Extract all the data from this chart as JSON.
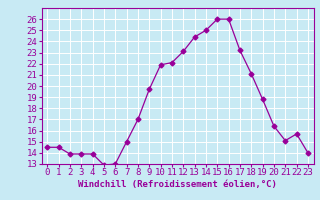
{
  "x": [
    0,
    1,
    2,
    3,
    4,
    5,
    6,
    7,
    8,
    9,
    10,
    11,
    12,
    13,
    14,
    15,
    16,
    17,
    18,
    19,
    20,
    21,
    22,
    23
  ],
  "y": [
    14.5,
    14.5,
    13.9,
    13.9,
    13.9,
    12.9,
    13.0,
    15.0,
    17.0,
    19.7,
    21.9,
    22.1,
    23.1,
    24.4,
    25.0,
    26.0,
    26.0,
    23.2,
    21.1,
    18.8,
    16.4,
    15.1,
    15.7,
    14.0
  ],
  "line_color": "#990099",
  "marker": "D",
  "marker_size": 2.5,
  "bg_color": "#c8eaf4",
  "grid_color": "#ffffff",
  "xlabel": "Windchill (Refroidissement éolien,°C)",
  "xlabel_color": "#990099",
  "tick_color": "#990099",
  "ylim": [
    13,
    27
  ],
  "xlim": [
    -0.5,
    23.5
  ],
  "yticks": [
    13,
    14,
    15,
    16,
    17,
    18,
    19,
    20,
    21,
    22,
    23,
    24,
    25,
    26
  ],
  "xticks": [
    0,
    1,
    2,
    3,
    4,
    5,
    6,
    7,
    8,
    9,
    10,
    11,
    12,
    13,
    14,
    15,
    16,
    17,
    18,
    19,
    20,
    21,
    22,
    23
  ],
  "spine_color": "#990099",
  "font_size": 6.5
}
